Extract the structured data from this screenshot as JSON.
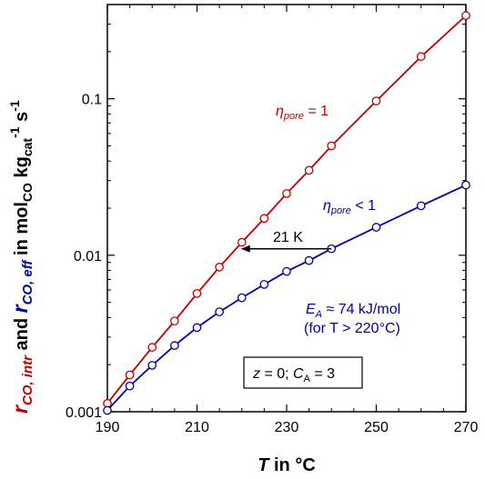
{
  "chart_data": {
    "type": "line",
    "title": "",
    "xlabel": {
      "symbol": "T",
      "rest": " in °C"
    },
    "ylabel": {
      "r1": "r",
      "r1_sub": "CO, intr",
      "and": " and ",
      "r2": "r",
      "r2_sub": "CO, eff",
      "in_mol": " in mol",
      "mol_sub": "CO",
      "kg": " kg",
      "kg_sub": "cat",
      "exp1": "-1",
      "s": " s",
      "exp2": "-1"
    },
    "x_range": [
      190,
      270
    ],
    "y_range": [
      0.001,
      0.4
    ],
    "y_scale": "log",
    "x_ticks": [
      "190",
      "210",
      "230",
      "250",
      "270"
    ],
    "y_ticks": [
      "0.001",
      "0.01",
      "0.1"
    ],
    "x_tick_values": [
      190,
      210,
      230,
      250,
      270
    ],
    "y_tick_values": [
      0.001,
      0.01,
      0.1
    ],
    "series": [
      {
        "color": "#c00000",
        "x": [
          190,
          195,
          200,
          205,
          210,
          215,
          220,
          225,
          230,
          235,
          240,
          250,
          260,
          270
        ],
        "y": [
          0.00113,
          0.00172,
          0.00258,
          0.0038,
          0.0057,
          0.0084,
          0.0121,
          0.0172,
          0.0248,
          0.0349,
          0.05,
          0.0968,
          0.186,
          0.34
        ]
      },
      {
        "color": "#0000a0",
        "x": [
          190,
          195,
          200,
          205,
          210,
          215,
          220,
          225,
          230,
          235,
          240,
          250,
          260,
          270
        ],
        "y": [
          0.00102,
          0.00146,
          0.00198,
          0.00265,
          0.00345,
          0.00435,
          0.00535,
          0.00651,
          0.00788,
          0.00925,
          0.011,
          0.0151,
          0.0207,
          0.0281
        ]
      }
    ],
    "annotations": {
      "eta1": {
        "sym": "η",
        "sub": "pore",
        "rest": " = 1"
      },
      "eta2": {
        "sym": "η",
        "sub": "pore",
        "rest": " < 1"
      },
      "shift_label": "21 K",
      "arrow_from": [
        240,
        0.011
      ],
      "arrow_to": [
        220,
        0.011
      ],
      "ea_line1": {
        "sym": "E",
        "sub": "A",
        "rest": " ≈ 74 kJ/mol"
      },
      "ea_line2": "(for T > 220°C)",
      "box_text": {
        "z": "z",
        "z_rest": " = 0; ",
        "c": "C",
        "c_sub": "A",
        "c_rest": " = 3"
      }
    },
    "grid": false,
    "legend": "none"
  }
}
